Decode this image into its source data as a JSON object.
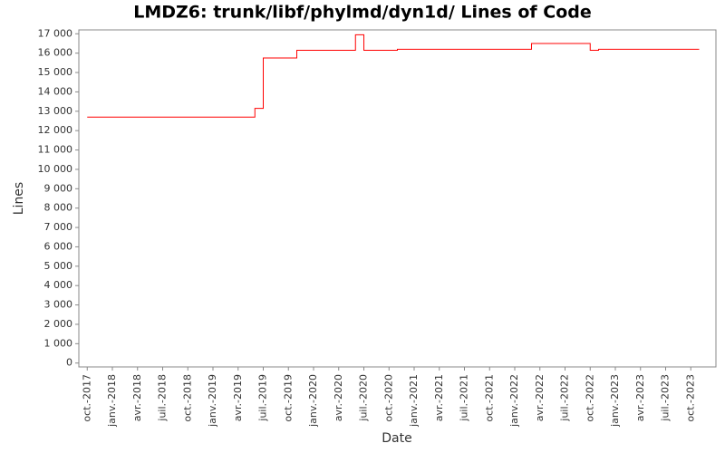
{
  "chart_data": {
    "type": "line",
    "step": true,
    "title": "LMDZ6: trunk/libf/phylmd/dyn1d/ Lines of Code",
    "x_label": "Date",
    "y_label": "Lines",
    "x": [
      "2017-10",
      "2019-06",
      "2019-07",
      "2019-11",
      "2020-06",
      "2020-07",
      "2020-11",
      "2022-03",
      "2022-10",
      "2022-11",
      "2023-11"
    ],
    "series": [
      {
        "name": "Lines",
        "color": "#ff0000",
        "values": [
          12700,
          13150,
          15750,
          16150,
          16950,
          16150,
          16200,
          16500,
          16150,
          16200,
          16200
        ]
      }
    ],
    "xlim": [
      "2017-09",
      "2024-01"
    ],
    "xticks": [
      {
        "value": "2017-10",
        "label": "oct.-2017"
      },
      {
        "value": "2018-01",
        "label": "janv.-2018"
      },
      {
        "value": "2018-04",
        "label": "avr.-2018"
      },
      {
        "value": "2018-07",
        "label": "juil.-2018"
      },
      {
        "value": "2018-10",
        "label": "oct.-2018"
      },
      {
        "value": "2019-01",
        "label": "janv.-2019"
      },
      {
        "value": "2019-04",
        "label": "avr.-2019"
      },
      {
        "value": "2019-07",
        "label": "juil.-2019"
      },
      {
        "value": "2019-10",
        "label": "oct.-2019"
      },
      {
        "value": "2020-01",
        "label": "janv.-2020"
      },
      {
        "value": "2020-04",
        "label": "avr.-2020"
      },
      {
        "value": "2020-07",
        "label": "juil.-2020"
      },
      {
        "value": "2020-10",
        "label": "oct.-2020"
      },
      {
        "value": "2021-01",
        "label": "janv.-2021"
      },
      {
        "value": "2021-04",
        "label": "avr.-2021"
      },
      {
        "value": "2021-07",
        "label": "juil.-2021"
      },
      {
        "value": "2021-10",
        "label": "oct.-2021"
      },
      {
        "value": "2022-01",
        "label": "janv.-2022"
      },
      {
        "value": "2022-04",
        "label": "avr.-2022"
      },
      {
        "value": "2022-07",
        "label": "juil.-2022"
      },
      {
        "value": "2022-10",
        "label": "oct.-2022"
      },
      {
        "value": "2023-01",
        "label": "janv.-2023"
      },
      {
        "value": "2023-04",
        "label": "avr.-2023"
      },
      {
        "value": "2023-07",
        "label": "juil.-2023"
      },
      {
        "value": "2023-10",
        "label": "oct.-2023"
      }
    ],
    "ylim": [
      -200,
      17200
    ],
    "yticks": [
      0,
      {
        "value": 1000,
        "label": "1 000"
      },
      {
        "value": 2000,
        "label": "2 000"
      },
      {
        "value": 3000,
        "label": "3 000"
      },
      {
        "value": 4000,
        "label": "4 000"
      },
      {
        "value": 5000,
        "label": "5 000"
      },
      {
        "value": 6000,
        "label": "6 000"
      },
      {
        "value": 7000,
        "label": "7 000"
      },
      {
        "value": 8000,
        "label": "8 000"
      },
      {
        "value": 9000,
        "label": "9 000"
      },
      {
        "value": 10000,
        "label": "10 000"
      },
      {
        "value": 11000,
        "label": "11 000"
      },
      {
        "value": 12000,
        "label": "12 000"
      },
      {
        "value": 13000,
        "label": "13 000"
      },
      {
        "value": 14000,
        "label": "14 000"
      },
      {
        "value": 15000,
        "label": "15 000"
      },
      {
        "value": 16000,
        "label": "16 000"
      },
      {
        "value": 17000,
        "label": "17 000"
      }
    ]
  }
}
